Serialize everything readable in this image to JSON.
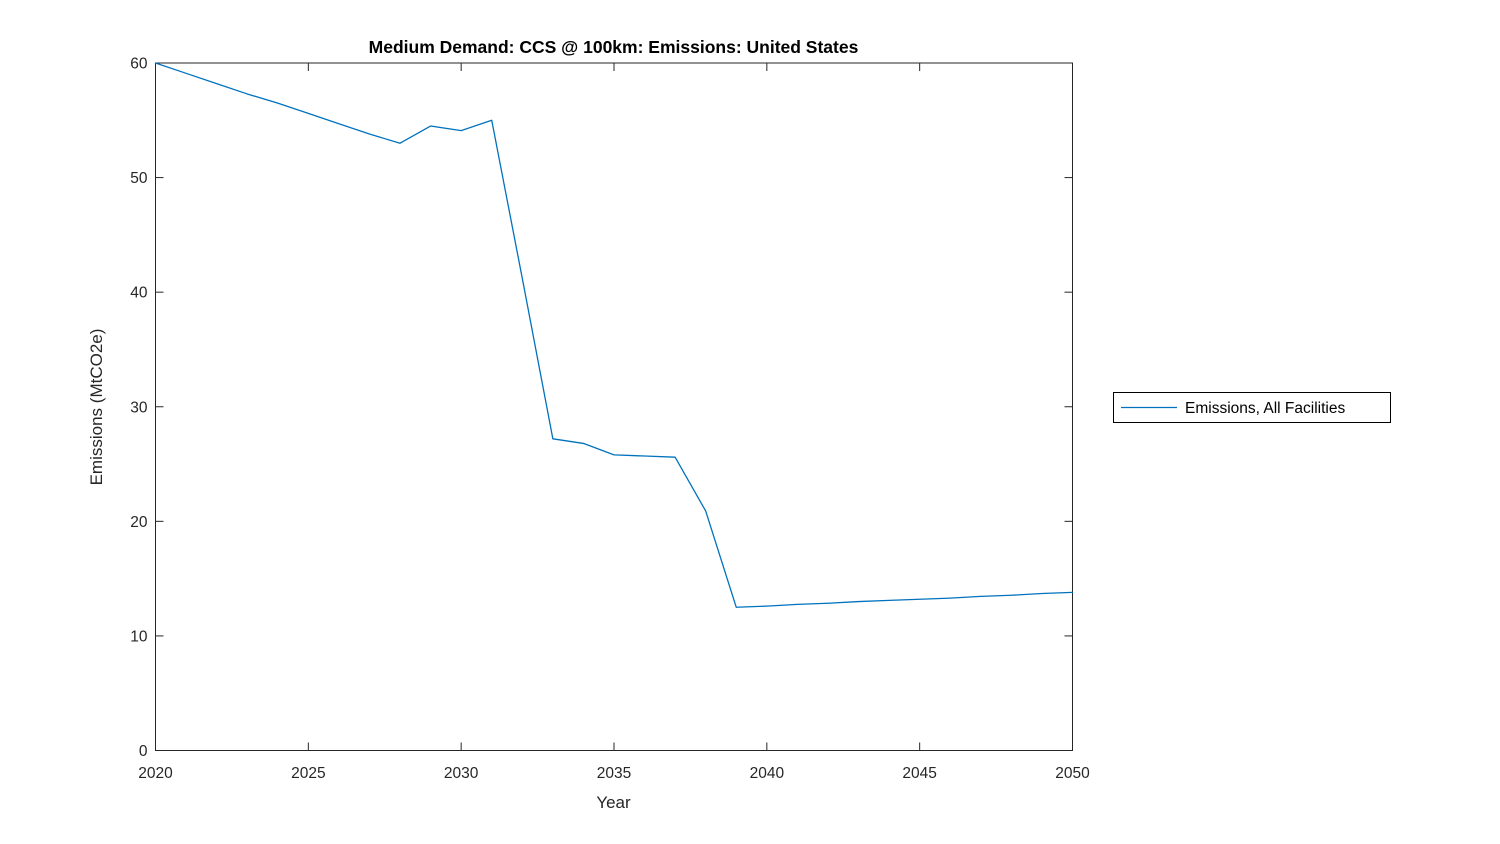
{
  "window": {
    "background": "#ffffff"
  },
  "colors": {
    "line": "#0072BD",
    "axis": "#262626",
    "title_text": "#000000",
    "legend_border": "#000000",
    "background": "#ffffff"
  },
  "chart_data": {
    "type": "line",
    "title": "Medium Demand: CCS @ 100km: Emissions: United States",
    "xlabel": "Year",
    "ylabel": "Emissions (MtCO2e)",
    "xlim": [
      2020,
      2050
    ],
    "ylim": [
      0,
      60
    ],
    "xticks": [
      2020,
      2025,
      2030,
      2035,
      2040,
      2045,
      2050
    ],
    "yticks": [
      0,
      10,
      20,
      30,
      40,
      50,
      60
    ],
    "grid": false,
    "box": true,
    "legend": {
      "position": "right-outside",
      "entries": [
        "Emissions, All Facilities"
      ]
    },
    "series": [
      {
        "name": "Emissions, All Facilities",
        "color": "#0072BD",
        "x": [
          2020,
          2021,
          2022,
          2023,
          2024,
          2025,
          2026,
          2027,
          2028,
          2029,
          2030,
          2031,
          2032,
          2033,
          2034,
          2035,
          2036,
          2037,
          2038,
          2039,
          2040,
          2041,
          2042,
          2043,
          2044,
          2045,
          2046,
          2047,
          2048,
          2049,
          2050
        ],
        "y": [
          60.0,
          59.1,
          58.2,
          57.3,
          56.5,
          55.6,
          54.7,
          53.8,
          53.0,
          54.5,
          54.1,
          55.0,
          41.2,
          27.2,
          26.8,
          25.8,
          25.7,
          25.6,
          20.9,
          12.5,
          12.6,
          12.75,
          12.85,
          13.0,
          13.1,
          13.2,
          13.3,
          13.45,
          13.55,
          13.7,
          13.8
        ]
      }
    ]
  }
}
